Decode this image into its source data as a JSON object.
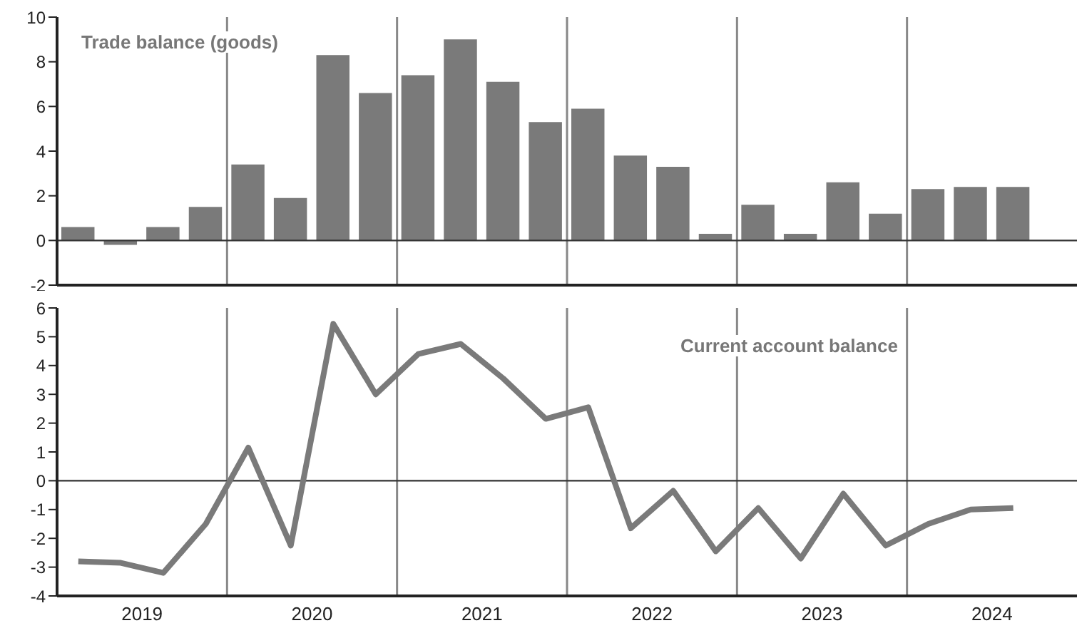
{
  "chart_data": [
    {
      "type": "bar",
      "title": "Trade balance (goods)",
      "x": [
        2019.125,
        2019.375,
        2019.625,
        2019.875,
        2020.125,
        2020.375,
        2020.625,
        2020.875,
        2021.125,
        2021.375,
        2021.625,
        2021.875,
        2022.125,
        2022.375,
        2022.625,
        2022.875,
        2023.125,
        2023.375,
        2023.625,
        2023.875,
        2024.125,
        2024.375,
        2024.625
      ],
      "values": [
        0.6,
        -0.2,
        0.6,
        1.5,
        3.4,
        1.9,
        8.3,
        6.6,
        7.4,
        9.0,
        7.1,
        5.3,
        5.9,
        3.8,
        3.3,
        0.3,
        1.6,
        0.3,
        2.6,
        1.2,
        2.3,
        2.4,
        2.4
      ],
      "color": "#7a7a7a",
      "xlim": [
        2019,
        2025
      ],
      "ylim": [
        -2,
        10
      ],
      "yticks": [
        -2,
        0,
        2,
        4,
        6,
        8,
        10
      ],
      "tick_labels": "y",
      "ref_lines": [
        {
          "axis": "y",
          "value": 0
        },
        {
          "axis": "x",
          "value": 2020
        },
        {
          "axis": "x",
          "value": 2021
        },
        {
          "axis": "x",
          "value": 2022
        },
        {
          "axis": "x",
          "value": 2023
        },
        {
          "axis": "x",
          "value": 2024
        }
      ]
    },
    {
      "type": "line",
      "title": "Current account balance",
      "x": [
        2019.125,
        2019.375,
        2019.625,
        2019.875,
        2020.125,
        2020.375,
        2020.625,
        2020.875,
        2021.125,
        2021.375,
        2021.625,
        2021.875,
        2022.125,
        2022.375,
        2022.625,
        2022.875,
        2023.125,
        2023.375,
        2023.625,
        2023.875,
        2024.125,
        2024.375,
        2024.625
      ],
      "values": [
        -2.8,
        -2.85,
        -3.2,
        -1.5,
        1.15,
        -2.25,
        5.45,
        3.0,
        4.4,
        4.75,
        3.55,
        2.15,
        2.55,
        -1.65,
        -0.35,
        -2.45,
        -0.95,
        -2.7,
        -0.45,
        -2.25,
        -1.5,
        -1.0,
        -0.95
      ],
      "color": "#7a7a7a",
      "xlim": [
        2019,
        2025
      ],
      "ylim": [
        -4,
        6
      ],
      "yticks": [
        -4,
        -3,
        -2,
        -1,
        0,
        1,
        2,
        3,
        4,
        5,
        6
      ],
      "xticks": [
        {
          "value": 2019.5,
          "label": "2019"
        },
        {
          "value": 2020.5,
          "label": "2020"
        },
        {
          "value": 2021.5,
          "label": "2021"
        },
        {
          "value": 2022.5,
          "label": "2022"
        },
        {
          "value": 2023.5,
          "label": "2023"
        },
        {
          "value": 2024.5,
          "label": "2024"
        }
      ],
      "marker": "none",
      "ref_lines": [
        {
          "axis": "y",
          "value": 0
        },
        {
          "axis": "x",
          "value": 2020
        },
        {
          "axis": "x",
          "value": 2021
        },
        {
          "axis": "x",
          "value": 2022
        },
        {
          "axis": "x",
          "value": 2023
        },
        {
          "axis": "x",
          "value": 2024
        }
      ]
    }
  ]
}
